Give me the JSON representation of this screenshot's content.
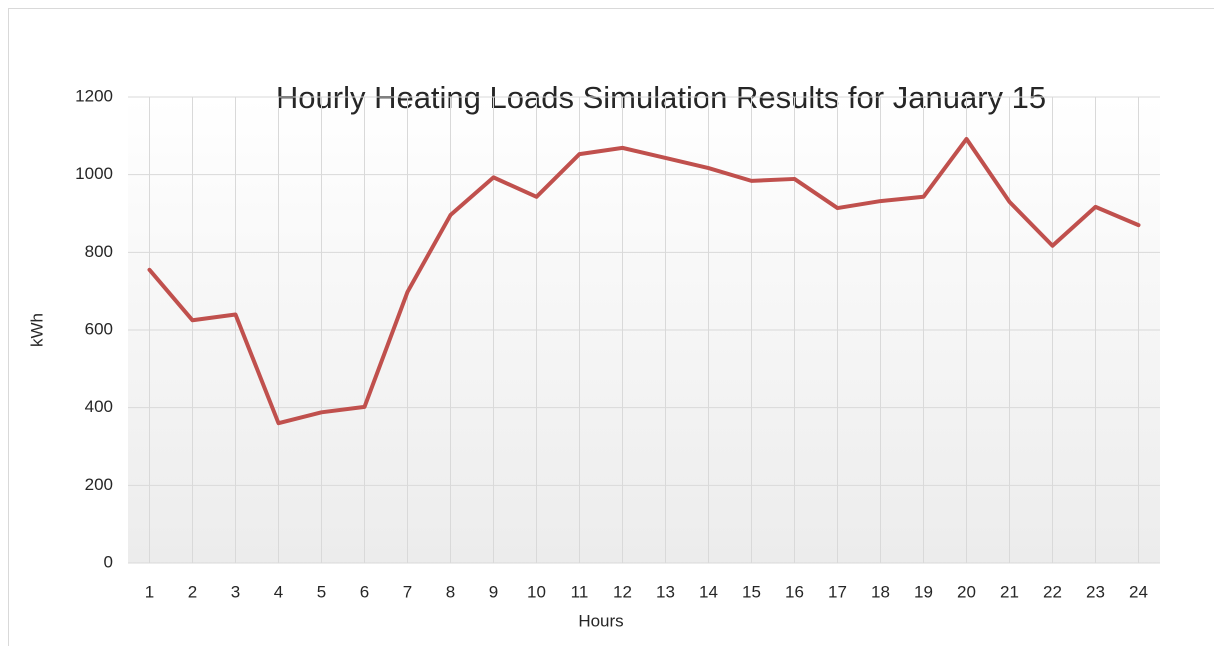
{
  "chart_data": {
    "type": "line",
    "title": "Hourly Heating Loads Simulation Results for January 15",
    "x_label": "Hours",
    "y_label": "kWh",
    "categories": [
      "1",
      "2",
      "3",
      "4",
      "5",
      "6",
      "7",
      "8",
      "9",
      "10",
      "11",
      "12",
      "13",
      "14",
      "15",
      "16",
      "17",
      "18",
      "19",
      "20",
      "21",
      "22",
      "23",
      "24"
    ],
    "series": [
      {
        "name": "Heating load",
        "color": "#c0504d",
        "values": [
          755,
          625,
          640,
          360,
          388,
          402,
          698,
          896,
          993,
          943,
          1053,
          1069,
          1043,
          1017,
          984,
          989,
          914,
          932,
          943,
          1092,
          930,
          817,
          917,
          870
        ]
      }
    ],
    "ylim": [
      0,
      1200
    ],
    "yticks": [
      0,
      200,
      400,
      600,
      800,
      1000,
      1200
    ],
    "grid": true
  }
}
